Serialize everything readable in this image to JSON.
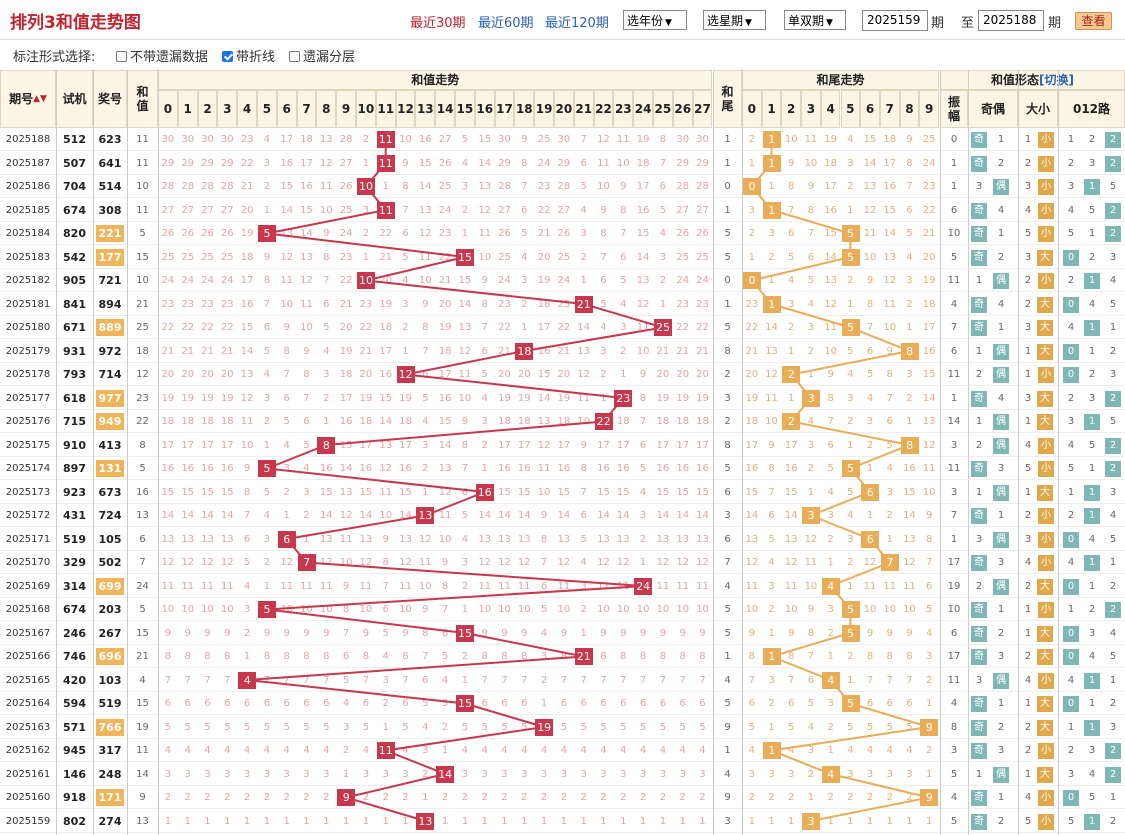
{
  "header": {
    "title": "排列3和值走势图",
    "quick_links": [
      "最近30期",
      "最近60期",
      "最近120期"
    ],
    "selects": [
      "选年份",
      "选星期",
      "单双期"
    ],
    "from_value": "2025159",
    "period_label": "期",
    "to_label": "至",
    "to_value": "2025188",
    "period_label2": "期",
    "view_button": "查看"
  },
  "options": {
    "label": "标注形式选择:",
    "items": [
      {
        "label": "不带遗漏数据",
        "checked": false
      },
      {
        "label": "带折线",
        "checked": true
      },
      {
        "label": "遗漏分层",
        "checked": false
      }
    ]
  },
  "table": {
    "headers": {
      "issue": "期号",
      "trial": "试机",
      "prize": "奖号",
      "sum": "和值",
      "sum_trend": "和值走势",
      "tail": "和尾",
      "tail_trend": "和尾走势",
      "form": "和值形态",
      "switch": "[切换]",
      "amplitude": "振幅",
      "odd_even": "奇偶",
      "big_small": "大小",
      "route": "012路"
    },
    "sum_columns": [
      "0",
      "1",
      "2",
      "3",
      "4",
      "5",
      "6",
      "7",
      "8",
      "9",
      "10",
      "11",
      "12",
      "13",
      "14",
      "15",
      "16",
      "17",
      "18",
      "19",
      "20",
      "21",
      "22",
      "23",
      "24",
      "25",
      "26",
      "27"
    ],
    "tail_columns": [
      "0",
      "1",
      "2",
      "3",
      "4",
      "5",
      "6",
      "7",
      "8",
      "9"
    ],
    "labels": {
      "odd": "奇",
      "even": "偶",
      "big": "大",
      "small": "小"
    },
    "rows": [
      {
        "issue": "2025188",
        "trial": "512",
        "prize": "623",
        "sum": 11,
        "amp": "0",
        "hl": false
      },
      {
        "issue": "2025187",
        "trial": "507",
        "prize": "641",
        "sum": 11,
        "amp": "1",
        "hl": false
      },
      {
        "issue": "2025186",
        "trial": "704",
        "prize": "514",
        "sum": 10,
        "amp": "1",
        "hl": false
      },
      {
        "issue": "2025185",
        "trial": "674",
        "prize": "308",
        "sum": 11,
        "amp": "6",
        "hl": false
      },
      {
        "issue": "2025184",
        "trial": "820",
        "prize": "221",
        "sum": 5,
        "amp": "10",
        "hl": true
      },
      {
        "issue": "2025183",
        "trial": "542",
        "prize": "177",
        "sum": 15,
        "amp": "5",
        "hl": true
      },
      {
        "issue": "2025182",
        "trial": "905",
        "prize": "721",
        "sum": 10,
        "amp": "11",
        "hl": false
      },
      {
        "issue": "2025181",
        "trial": "841",
        "prize": "894",
        "sum": 21,
        "amp": "4",
        "hl": false
      },
      {
        "issue": "2025180",
        "trial": "671",
        "prize": "889",
        "sum": 25,
        "amp": "7",
        "hl": true
      },
      {
        "issue": "2025179",
        "trial": "931",
        "prize": "972",
        "sum": 18,
        "amp": "6",
        "hl": false
      },
      {
        "issue": "2025178",
        "trial": "793",
        "prize": "714",
        "sum": 12,
        "amp": "11",
        "hl": false
      },
      {
        "issue": "2025177",
        "trial": "618",
        "prize": "977",
        "sum": 23,
        "amp": "1",
        "hl": true
      },
      {
        "issue": "2025176",
        "trial": "715",
        "prize": "949",
        "sum": 22,
        "amp": "14",
        "hl": true
      },
      {
        "issue": "2025175",
        "trial": "910",
        "prize": "413",
        "sum": 8,
        "amp": "3",
        "hl": false
      },
      {
        "issue": "2025174",
        "trial": "897",
        "prize": "131",
        "sum": 5,
        "amp": "11",
        "hl": true
      },
      {
        "issue": "2025173",
        "trial": "923",
        "prize": "673",
        "sum": 16,
        "amp": "3",
        "hl": false
      },
      {
        "issue": "2025172",
        "trial": "431",
        "prize": "724",
        "sum": 13,
        "amp": "7",
        "hl": false
      },
      {
        "issue": "2025171",
        "trial": "519",
        "prize": "105",
        "sum": 6,
        "amp": "1",
        "hl": false
      },
      {
        "issue": "2025170",
        "trial": "329",
        "prize": "502",
        "sum": 7,
        "amp": "17",
        "hl": false
      },
      {
        "issue": "2025169",
        "trial": "314",
        "prize": "699",
        "sum": 24,
        "amp": "19",
        "hl": true
      },
      {
        "issue": "2025168",
        "trial": "674",
        "prize": "203",
        "sum": 5,
        "amp": "10",
        "hl": false
      },
      {
        "issue": "2025167",
        "trial": "246",
        "prize": "267",
        "sum": 15,
        "amp": "6",
        "hl": false
      },
      {
        "issue": "2025166",
        "trial": "746",
        "prize": "696",
        "sum": 21,
        "amp": "17",
        "hl": true
      },
      {
        "issue": "2025165",
        "trial": "420",
        "prize": "103",
        "sum": 4,
        "amp": "11",
        "hl": false
      },
      {
        "issue": "2025164",
        "trial": "594",
        "prize": "519",
        "sum": 15,
        "amp": "4",
        "hl": false
      },
      {
        "issue": "2025163",
        "trial": "571",
        "prize": "766",
        "sum": 19,
        "amp": "8",
        "hl": true
      },
      {
        "issue": "2025162",
        "trial": "945",
        "prize": "317",
        "sum": 11,
        "amp": "3",
        "hl": false
      },
      {
        "issue": "2025161",
        "trial": "146",
        "prize": "248",
        "sum": 14,
        "amp": "5",
        "hl": false
      },
      {
        "issue": "2025160",
        "trial": "918",
        "prize": "171",
        "sum": 9,
        "amp": "4",
        "hl": true
      },
      {
        "issue": "2025159",
        "trial": "802",
        "prize": "274",
        "sum": 13,
        "amp": "5",
        "hl": false
      }
    ]
  },
  "colors": {
    "hit": "#c8374b",
    "tail_hit": "#e9ad58",
    "line": "#c8374b",
    "tail_line": "#e9ad58"
  }
}
